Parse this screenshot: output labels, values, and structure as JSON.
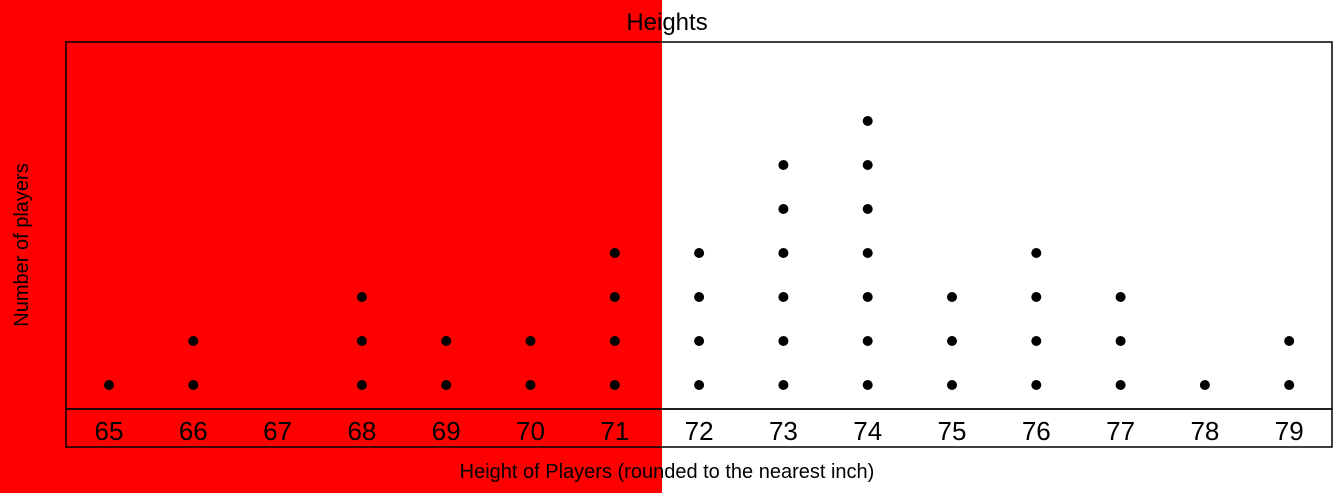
{
  "overlay": {
    "color": "#ff0000"
  },
  "chart_data": {
    "type": "dot-plot",
    "title": "Heights",
    "xlabel": "Height of Players (rounded to the nearest inch)",
    "ylabel": "Number of players",
    "categories": [
      "65",
      "66",
      "67",
      "68",
      "69",
      "70",
      "71",
      "72",
      "73",
      "74",
      "75",
      "76",
      "77",
      "78",
      "79"
    ],
    "values": [
      1,
      2,
      0,
      3,
      2,
      2,
      4,
      4,
      6,
      7,
      3,
      4,
      3,
      1,
      2
    ],
    "grid": false,
    "legend": "none"
  }
}
